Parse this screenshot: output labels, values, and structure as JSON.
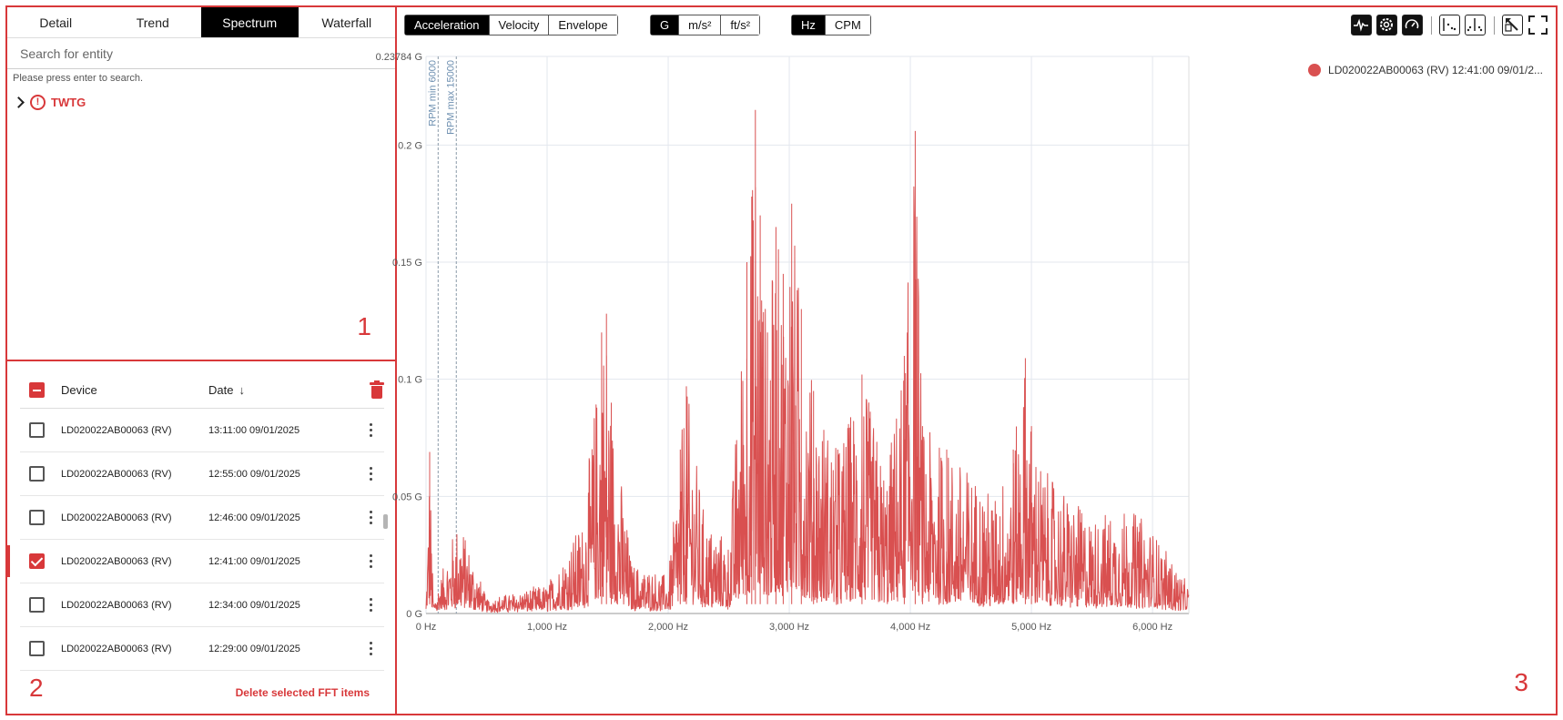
{
  "panel_numbers": {
    "p1": "1",
    "p2": "2",
    "p3": "3"
  },
  "tabs": [
    {
      "label": "Detail",
      "active": false
    },
    {
      "label": "Trend",
      "active": false
    },
    {
      "label": "Spectrum",
      "active": true
    },
    {
      "label": "Waterfall",
      "active": false
    }
  ],
  "search": {
    "placeholder": "Search for entity",
    "hint": "Please press enter to search."
  },
  "tree": {
    "root_label": "TWTG"
  },
  "fft_list": {
    "header": {
      "device": "Device",
      "date": "Date"
    },
    "rows": [
      {
        "device": "LD020022AB00063 (RV)",
        "date": "13:11:00 09/01/2025",
        "checked": false
      },
      {
        "device": "LD020022AB00063 (RV)",
        "date": "12:55:00 09/01/2025",
        "checked": false
      },
      {
        "device": "LD020022AB00063 (RV)",
        "date": "12:46:00 09/01/2025",
        "checked": false
      },
      {
        "device": "LD020022AB00063 (RV)",
        "date": "12:41:00 09/01/2025",
        "checked": true
      },
      {
        "device": "LD020022AB00063 (RV)",
        "date": "12:34:00 09/01/2025",
        "checked": false
      },
      {
        "device": "LD020022AB00063 (RV)",
        "date": "12:29:00 09/01/2025",
        "checked": false
      }
    ],
    "delete_label": "Delete selected FFT items"
  },
  "toolbar": {
    "measure": [
      "Acceleration",
      "Velocity",
      "Envelope"
    ],
    "measure_active": 0,
    "unit": [
      "G",
      "m/s²",
      "ft/s²"
    ],
    "unit_active": 0,
    "freq": [
      "Hz",
      "CPM"
    ],
    "freq_active": 0,
    "icons": [
      "waveform-icon",
      "gear-icon",
      "gauge-icon",
      "cursor-harmonic-icon",
      "cursor-sideband-icon",
      "export-icon",
      "fullscreen-icon"
    ]
  },
  "chart_data": {
    "type": "line",
    "series": [
      {
        "name": "LD020022AB00063 (RV) 12:41:00 09/01/2...",
        "color": "#d95050"
      }
    ],
    "x_ticks": [
      "0 Hz",
      "1,000 Hz",
      "2,000 Hz",
      "3,000 Hz",
      "4,000 Hz",
      "5,000 Hz",
      "6,000 Hz"
    ],
    "x_tick_values": [
      0,
      1000,
      2000,
      3000,
      4000,
      5000,
      6000
    ],
    "y_ticks": [
      "0 G",
      "0.05 G",
      "0.1 G",
      "0.15 G",
      "0.2 G",
      "0.23784 G"
    ],
    "y_tick_values": [
      0,
      0.05,
      0.1,
      0.15,
      0.2,
      0.23784
    ],
    "xlim": [
      0,
      6300
    ],
    "ylim": [
      0,
      0.23784
    ],
    "grid": true,
    "legend": "top-right",
    "annotations": [
      {
        "x": 100,
        "label": "RPM min 6000"
      },
      {
        "x": 250,
        "label": "RPM max 15000"
      }
    ],
    "peaks": [
      [
        0,
        0.003
      ],
      [
        30,
        0.069
      ],
      [
        60,
        0.004
      ],
      [
        270,
        0.041
      ],
      [
        500,
        0.005
      ],
      [
        1000,
        0.011
      ],
      [
        1300,
        0.04
      ],
      [
        1450,
        0.12
      ],
      [
        1490,
        0.128
      ],
      [
        1530,
        0.09
      ],
      [
        1700,
        0.02
      ],
      [
        2000,
        0.015
      ],
      [
        2100,
        0.07
      ],
      [
        2150,
        0.097
      ],
      [
        2300,
        0.04
      ],
      [
        2500,
        0.03
      ],
      [
        2650,
        0.15
      ],
      [
        2690,
        0.178
      ],
      [
        2720,
        0.215
      ],
      [
        2760,
        0.17
      ],
      [
        2820,
        0.12
      ],
      [
        2890,
        0.165
      ],
      [
        2950,
        0.145
      ],
      [
        3020,
        0.175
      ],
      [
        3100,
        0.13
      ],
      [
        3200,
        0.095
      ],
      [
        3400,
        0.07
      ],
      [
        3600,
        0.102
      ],
      [
        3800,
        0.06
      ],
      [
        3950,
        0.11
      ],
      [
        4040,
        0.206
      ],
      [
        4100,
        0.08
      ],
      [
        4300,
        0.07
      ],
      [
        4500,
        0.06
      ],
      [
        4700,
        0.05
      ],
      [
        4850,
        0.07
      ],
      [
        4950,
        0.109
      ],
      [
        5000,
        0.08
      ],
      [
        5100,
        0.06
      ],
      [
        5300,
        0.05
      ],
      [
        5500,
        0.04
      ],
      [
        5800,
        0.045
      ],
      [
        6000,
        0.035
      ],
      [
        6300,
        0.01
      ]
    ]
  }
}
